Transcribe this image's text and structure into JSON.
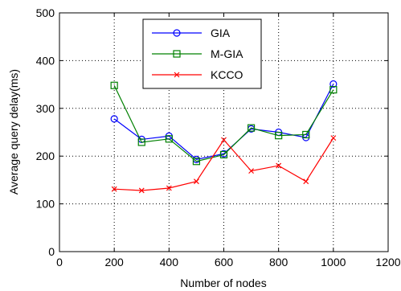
{
  "chart_data": {
    "type": "line",
    "xlabel": "Number of nodes",
    "ylabel": "Average query delay(ms)",
    "xlim": [
      0,
      1200
    ],
    "ylim": [
      0,
      500
    ],
    "xticks": [
      0,
      200,
      400,
      600,
      800,
      1000,
      1200
    ],
    "yticks": [
      0,
      100,
      200,
      300,
      400,
      500
    ],
    "grid": true,
    "legend_position": "top-center",
    "series": [
      {
        "name": "GIA",
        "color": "#0000ff",
        "marker": "circle",
        "x": [
          200,
          300,
          400,
          500,
          600,
          700,
          800,
          900,
          1000
        ],
        "y": [
          278,
          235,
          242,
          193,
          205,
          257,
          250,
          239,
          351
        ]
      },
      {
        "name": "M-GIA",
        "color": "#008000",
        "marker": "square",
        "x": [
          200,
          300,
          400,
          500,
          600,
          700,
          800,
          900,
          1000
        ],
        "y": [
          348,
          229,
          236,
          189,
          203,
          259,
          243,
          245,
          339
        ]
      },
      {
        "name": "KCCO",
        "color": "#ff0000",
        "marker": "x",
        "x": [
          200,
          300,
          400,
          500,
          600,
          700,
          800,
          900,
          1000
        ],
        "y": [
          131,
          128,
          133,
          147,
          234,
          169,
          180,
          147,
          238
        ]
      }
    ]
  }
}
